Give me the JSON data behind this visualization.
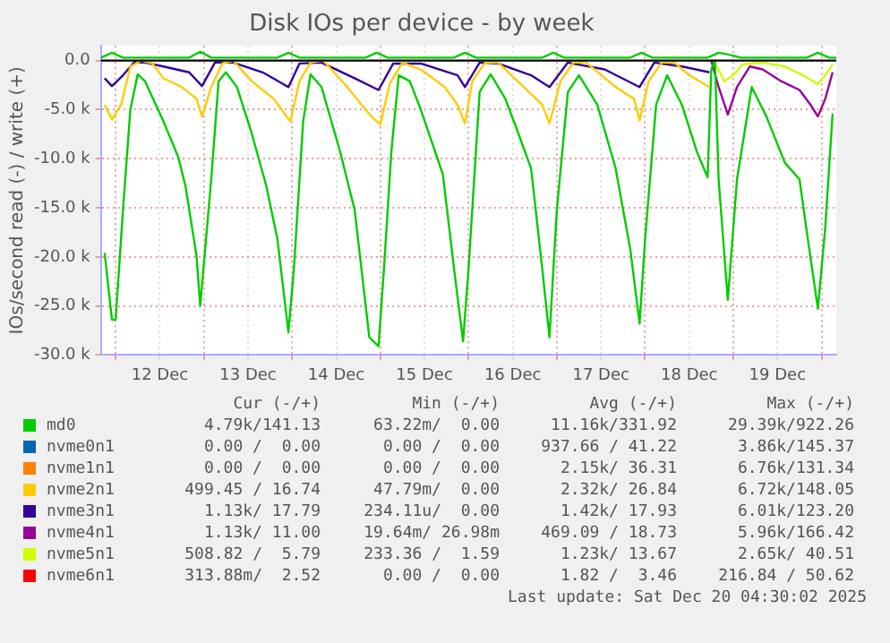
{
  "chart_data": {
    "type": "line",
    "title": "Disk IOs per device - by week",
    "ylabel": "IOs/second read (-) / write (+)",
    "xlim": [
      "2025-12-11T20:00",
      "2025-12-20T04:00"
    ],
    "xticks": [
      {
        "value": "2025-12-12T00:00",
        "label": null
      },
      {
        "value": "2025-12-12T12:00",
        "label": "12 Dec"
      },
      {
        "value": "2025-12-13T00:00",
        "label": null
      },
      {
        "value": "2025-12-13T12:00",
        "label": "13 Dec"
      },
      {
        "value": "2025-12-14T00:00",
        "label": null
      },
      {
        "value": "2025-12-14T12:00",
        "label": "14 Dec"
      },
      {
        "value": "2025-12-15T00:00",
        "label": null
      },
      {
        "value": "2025-12-15T12:00",
        "label": "15 Dec"
      },
      {
        "value": "2025-12-16T00:00",
        "label": null
      },
      {
        "value": "2025-12-16T12:00",
        "label": "16 Dec"
      },
      {
        "value": "2025-12-17T00:00",
        "label": null
      },
      {
        "value": "2025-12-17T12:00",
        "label": "17 Dec"
      },
      {
        "value": "2025-12-18T00:00",
        "label": null
      },
      {
        "value": "2025-12-18T12:00",
        "label": "18 Dec"
      },
      {
        "value": "2025-12-19T00:00",
        "label": null
      },
      {
        "value": "2025-12-19T12:00",
        "label": "19 Dec"
      },
      {
        "value": "2025-12-20T00:00",
        "label": null
      }
    ],
    "ylim": [
      -30000,
      1500
    ],
    "yticks": [
      {
        "value": -30000,
        "label": "-30.0 k"
      },
      {
        "value": -25000,
        "label": "-25.0 k"
      },
      {
        "value": -20000,
        "label": "-20.0 k"
      },
      {
        "value": -15000,
        "label": "-15.0 k"
      },
      {
        "value": -10000,
        "label": "-10.0 k"
      },
      {
        "value": -5000,
        "label": "-5.0 k"
      },
      {
        "value": 0,
        "label": "0.0"
      }
    ],
    "grid": true,
    "legend": "bottom",
    "ref_lines": [
      {
        "axis": "y",
        "value": 0,
        "color": "#000000"
      }
    ],
    "series": [
      {
        "name": "md0",
        "color": "#00cc00",
        "x": [
          "2025-12-11T21:00",
          "2025-12-11T23:00",
          "2025-12-12T00:00",
          "2025-12-12T02:00",
          "2025-12-12T04:00",
          "2025-12-12T06:00",
          "2025-12-12T08:00",
          "2025-12-12T13:00",
          "2025-12-12T17:00",
          "2025-12-12T19:00",
          "2025-12-12T22:00",
          "2025-12-12T23:00",
          "2025-12-13T02:00",
          "2025-12-13T04:00",
          "2025-12-13T06:00",
          "2025-12-13T09:00",
          "2025-12-13T13:00",
          "2025-12-13T17:00",
          "2025-12-13T20:00",
          "2025-12-13T23:00",
          "2025-12-14T00:30",
          "2025-12-14T03:00",
          "2025-12-14T05:00",
          "2025-12-14T08:00",
          "2025-12-14T13:00",
          "2025-12-14T17:00",
          "2025-12-14T21:00",
          "2025-12-14T23:30",
          "2025-12-15T01:00",
          "2025-12-15T03:00",
          "2025-12-15T05:00",
          "2025-12-15T08:00",
          "2025-12-15T11:00",
          "2025-12-15T17:00",
          "2025-12-15T20:00",
          "2025-12-15T22:30",
          "2025-12-16T00:00",
          "2025-12-16T03:00",
          "2025-12-16T06:00",
          "2025-12-16T10:00",
          "2025-12-16T13:30",
          "2025-12-16T17:00",
          "2025-12-16T20:00",
          "2025-12-16T22:00",
          "2025-12-17T00:00",
          "2025-12-17T03:00",
          "2025-12-17T06:00",
          "2025-12-17T11:00",
          "2025-12-17T16:00",
          "2025-12-17T20:00",
          "2025-12-17T22:30",
          "2025-12-18T00:00",
          "2025-12-18T03:00",
          "2025-12-18T06:00",
          "2025-12-18T10:00",
          "2025-12-18T14:00",
          "2025-12-18T17:00",
          "2025-12-18T18:00",
          "2025-12-18T19:00",
          "2025-12-18T20:00",
          "2025-12-18T22:30",
          "2025-12-19T01:00",
          "2025-12-19T05:00",
          "2025-12-19T09:00",
          "2025-12-19T14:00",
          "2025-12-19T18:00",
          "2025-12-19T20:00",
          "2025-12-19T23:00",
          "2025-12-20T01:00",
          "2025-12-20T03:00"
        ],
        "values": [
          -19600,
          -26400,
          -26400,
          -15200,
          -5000,
          -1400,
          -2100,
          -6200,
          -9800,
          -12800,
          -19900,
          -25000,
          -12100,
          -2100,
          -1200,
          -2700,
          -7400,
          -12800,
          -18200,
          -27700,
          -21100,
          -6200,
          -1400,
          -2700,
          -9200,
          -15200,
          -28200,
          -29100,
          -21100,
          -9200,
          -1500,
          -2100,
          -5000,
          -11600,
          -21100,
          -28600,
          -21100,
          -3200,
          -1400,
          -3900,
          -7400,
          -11000,
          -21100,
          -28200,
          -15200,
          -3200,
          -1500,
          -4500,
          -11000,
          -19300,
          -26800,
          -18200,
          -4500,
          -1500,
          -4500,
          -9200,
          -11900,
          -900,
          0,
          -12100,
          -24400,
          -12100,
          -2700,
          -5700,
          -10400,
          -12100,
          -17500,
          -25300,
          -17000,
          -5400
        ]
      },
      {
        "name": "nvme0n1",
        "color": "#0066b3"
      },
      {
        "name": "nvme1n1",
        "color": "#ff8000"
      },
      {
        "name": "nvme2n1",
        "color": "#ffcc00",
        "x": [
          "2025-12-11T21:00",
          "2025-12-11T23:00",
          "2025-12-12T01:30",
          "2025-12-12T04:00",
          "2025-12-12T07:00",
          "2025-12-12T10:00",
          "2025-12-12T13:00",
          "2025-12-12T18:00",
          "2025-12-12T22:00",
          "2025-12-12T23:30",
          "2025-12-13T02:00",
          "2025-12-13T05:00",
          "2025-12-13T08:00",
          "2025-12-13T13:00",
          "2025-12-13T19:00",
          "2025-12-13T23:30",
          "2025-12-14T02:00",
          "2025-12-14T05:00",
          "2025-12-14T08:30",
          "2025-12-14T15:00",
          "2025-12-14T21:30",
          "2025-12-15T00:00",
          "2025-12-15T02:30",
          "2025-12-15T06:00",
          "2025-12-15T11:00",
          "2025-12-15T17:30",
          "2025-12-15T21:00",
          "2025-12-15T23:00",
          "2025-12-16T01:00",
          "2025-12-16T04:30",
          "2025-12-16T08:00",
          "2025-12-16T15:00",
          "2025-12-16T20:00",
          "2025-12-16T22:00",
          "2025-12-17T01:00",
          "2025-12-17T04:30",
          "2025-12-17T08:00",
          "2025-12-17T16:00",
          "2025-12-17T21:00",
          "2025-12-17T22:30",
          "2025-12-18T01:00",
          "2025-12-18T04:30",
          "2025-12-18T08:00",
          "2025-12-18T12:00",
          "2025-12-18T17:30"
        ],
        "values": [
          -4500,
          -6000,
          -4500,
          -600,
          0,
          -300,
          -1800,
          -2700,
          -3900,
          -5700,
          -2700,
          -300,
          0,
          -2100,
          -3900,
          -6200,
          -2100,
          -200,
          0,
          -2700,
          -5700,
          -6500,
          -2400,
          -200,
          -900,
          -2700,
          -4500,
          -6400,
          -2100,
          -200,
          -200,
          -2700,
          -4500,
          -6400,
          -2100,
          -200,
          -200,
          -2700,
          -3900,
          -6100,
          -2100,
          -200,
          -200,
          -1500,
          -2700
        ]
      },
      {
        "name": "nvme3n1",
        "color": "#330099",
        "x": [
          "2025-12-11T21:00",
          "2025-12-11T23:00",
          "2025-12-12T02:00",
          "2025-12-12T05:00",
          "2025-12-12T08:00",
          "2025-12-12T13:00",
          "2025-12-12T20:00",
          "2025-12-12T23:30",
          "2025-12-13T03:00",
          "2025-12-13T08:00",
          "2025-12-13T16:00",
          "2025-12-13T23:00",
          "2025-12-14T02:00",
          "2025-12-14T08:00",
          "2025-12-14T17:00",
          "2025-12-14T23:30",
          "2025-12-15T03:30",
          "2025-12-15T11:00",
          "2025-12-15T21:00",
          "2025-12-15T23:00",
          "2025-12-16T03:00",
          "2025-12-16T08:00",
          "2025-12-16T17:00",
          "2025-12-16T22:00",
          "2025-12-17T03:00",
          "2025-12-17T13:00",
          "2025-12-17T22:30",
          "2025-12-18T02:30",
          "2025-12-18T10:00",
          "2025-12-18T17:30"
        ],
        "values": [
          -1800,
          -2600,
          -1500,
          -200,
          -200,
          -600,
          -1200,
          -2600,
          -200,
          -200,
          -1200,
          -2700,
          -300,
          -200,
          -1800,
          -3000,
          -300,
          -300,
          -1500,
          -2700,
          -200,
          -300,
          -1500,
          -2700,
          -200,
          -900,
          -2700,
          -200,
          -600,
          -1200
        ]
      },
      {
        "name": "nvme4n1",
        "color": "#990099",
        "x": [
          "2025-12-18T18:00",
          "2025-12-18T20:00",
          "2025-12-18T22:30",
          "2025-12-19T01:00",
          "2025-12-19T04:30",
          "2025-12-19T08:00",
          "2025-12-19T13:00",
          "2025-12-19T18:00",
          "2025-12-19T21:00",
          "2025-12-19T23:00",
          "2025-12-20T01:00",
          "2025-12-20T03:00"
        ],
        "values": [
          0,
          -2700,
          -5500,
          -2700,
          -600,
          -900,
          -2100,
          -3000,
          -4500,
          -5700,
          -3900,
          -1200
        ]
      },
      {
        "name": "nvme5n1",
        "color": "#ccff00",
        "x": [
          "2025-12-18T18:00",
          "2025-12-18T20:00",
          "2025-12-18T21:30",
          "2025-12-19T00:00",
          "2025-12-19T02:30",
          "2025-12-19T08:00",
          "2025-12-19T14:00",
          "2025-12-19T19:00",
          "2025-12-19T23:00",
          "2025-12-20T01:00",
          "2025-12-20T03:00"
        ],
        "values": [
          0,
          -900,
          -2100,
          -1500,
          -400,
          -200,
          -600,
          -1500,
          -2400,
          -1500,
          -400
        ]
      },
      {
        "name": "nvme6n1",
        "color": "#ff0000"
      },
      {
        "color": "#00cc00",
        "x": [
          "2025-12-11T20:00",
          "2025-12-11T23:00",
          "2025-12-12T02:00",
          "2025-12-12T20:00",
          "2025-12-12T23:00",
          "2025-12-13T02:00",
          "2025-12-13T20:00",
          "2025-12-13T23:00",
          "2025-12-14T02:00",
          "2025-12-14T20:00",
          "2025-12-14T23:00",
          "2025-12-15T02:00",
          "2025-12-15T20:00",
          "2025-12-15T23:00",
          "2025-12-16T02:00",
          "2025-12-16T20:00",
          "2025-12-16T23:00",
          "2025-12-17T02:00",
          "2025-12-17T20:00",
          "2025-12-17T23:00",
          "2025-12-18T02:00",
          "2025-12-18T17:00",
          "2025-12-18T20:00",
          "2025-12-18T23:00",
          "2025-12-19T02:00",
          "2025-12-19T20:00",
          "2025-12-19T23:00",
          "2025-12-20T02:00",
          "2025-12-20T04:00"
        ],
        "values": [
          300,
          800,
          300,
          300,
          900,
          300,
          300,
          800,
          300,
          300,
          800,
          300,
          300,
          800,
          300,
          300,
          800,
          300,
          300,
          800,
          300,
          300,
          800,
          600,
          300,
          300,
          800,
          300,
          300
        ]
      }
    ],
    "annotations": [
      "Cur (-/+)",
      "Min (-/+)",
      "Avg (-/+)",
      "Max (-/+)",
      "4.79k/141.13",
      "63.22m/  0.00",
      "11.16k/331.92",
      "29.39k/922.26",
      "0.00 /  0.00",
      "0.00 /  0.00",
      "937.66 / 41.22",
      "3.86k/145.37",
      "0.00 /  0.00",
      "0.00 /  0.00",
      "2.15k/ 36.31",
      "6.76k/131.34",
      "499.45 / 16.74",
      "47.79m/  0.00",
      "2.32k/ 26.84",
      "6.72k/148.05",
      "1.13k/ 17.79",
      "234.11u/  0.00",
      "1.42k/ 17.93",
      "6.01k/123.20",
      "1.13k/ 11.00",
      "19.64m/ 26.98m",
      "469.09 / 18.73",
      "5.96k/166.42",
      "508.82 /  5.79",
      "233.36 /  1.59",
      "1.23k/ 13.67",
      "2.65k/ 40.51",
      "313.88m/  2.52",
      "0.00 /  0.00",
      "1.82 /  3.46",
      "216.84 / 50.62",
      "Last update: Sat Dec 20 04:30:02 2025"
    ]
  }
}
